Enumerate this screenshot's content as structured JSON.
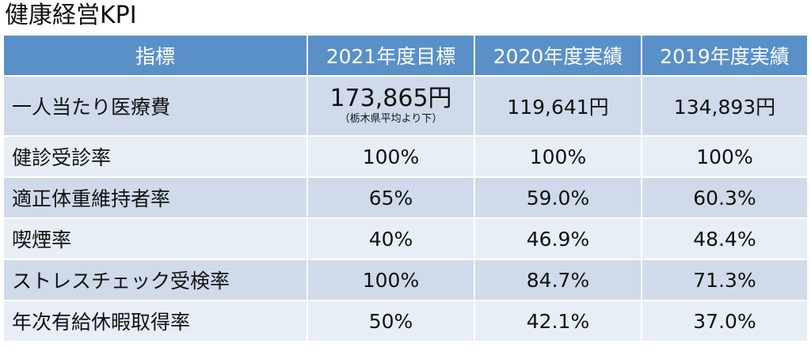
{
  "title": "健康経営KPI",
  "headers": [
    "指標",
    "2021年度目標",
    "2020年度実績",
    "2019年度実績"
  ],
  "rows": [
    {
      "metric": "一人当たり医療費",
      "target": "173,865円",
      "target_note": "（栃木県平均より下）",
      "y2020": "119,641円",
      "y2019": "134,893円"
    },
    {
      "metric": "健診受診率",
      "target": "100%",
      "y2020": "100%",
      "y2019": "100%"
    },
    {
      "metric": "適正体重維持者率",
      "target": "65%",
      "y2020": "59.0%",
      "y2019": "60.3%"
    },
    {
      "metric": "喫煙率",
      "target": "40%",
      "y2020": "46.9%",
      "y2019": "48.4%"
    },
    {
      "metric": "ストレスチェック受検率",
      "target": "100%",
      "y2020": "84.7%",
      "y2019": "71.3%"
    },
    {
      "metric": "年次有給休暇取得率",
      "target": "50%",
      "y2020": "42.1%",
      "y2019": "37.0%"
    }
  ],
  "colors": {
    "header_bg": "#5a90c8",
    "row_dark": "#cfdbea",
    "row_light": "#e8eef6"
  }
}
